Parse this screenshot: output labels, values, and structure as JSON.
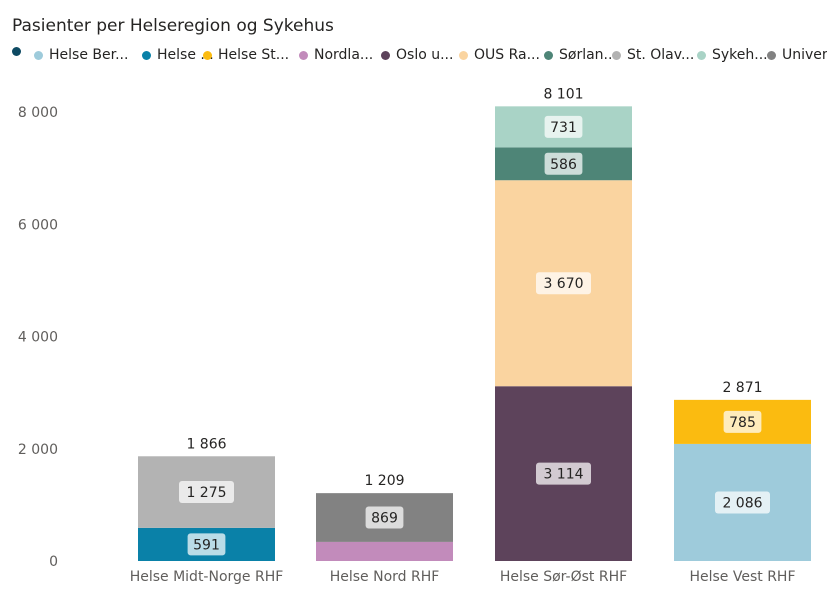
{
  "chart_data": {
    "type": "bar",
    "stacked": true,
    "title": "Pasienter per Helseregion og Sykehus",
    "legend_position": "top-left",
    "grid": false,
    "ylim": [
      0,
      8000
    ],
    "yticks": [
      0,
      2000,
      4000,
      6000,
      8000
    ],
    "ytick_labels": [
      "0",
      "2 000",
      "4 000",
      "6 000",
      "8 000"
    ],
    "categories": [
      "Helse Midt-Norge RHF",
      "Helse Nord RHF",
      "Helse Sør-Øst RHF",
      "Helse Vest RHF"
    ],
    "totals": [
      1866,
      1209,
      8101,
      2871
    ],
    "total_labels": [
      "1 866",
      "1 209",
      "8 101",
      "2 871"
    ],
    "legend": [
      {
        "label": "",
        "color": "#0e4a63"
      },
      {
        "label": "Helse Ber...",
        "color": "#9ecbdb"
      },
      {
        "label": "Helse ...",
        "color": "#0a81a8"
      },
      {
        "label": "Helse St...",
        "color": "#fbbb10"
      },
      {
        "label": "Nordla...",
        "color": "#c28bbb"
      },
      {
        "label": "Oslo u...",
        "color": "#5d435b"
      },
      {
        "label": "OUS Ra...",
        "color": "#fad4a0"
      },
      {
        "label": "Sørlan...",
        "color": "#4e8577"
      },
      {
        "label": "St. Olav...",
        "color": "#b3b3b3"
      },
      {
        "label": "Sykeh...",
        "color": "#a9d3c6"
      },
      {
        "label": "Univer...",
        "color": "#828282"
      }
    ],
    "series": [
      {
        "color": "#0a81a8",
        "values": [
          591,
          0,
          0,
          0
        ],
        "labels": [
          "591",
          "",
          "",
          ""
        ]
      },
      {
        "color": "#b3b3b3",
        "values": [
          1275,
          0,
          0,
          0
        ],
        "labels": [
          "1 275",
          "",
          "",
          ""
        ]
      },
      {
        "color": "#c28bbb",
        "values": [
          0,
          340,
          0,
          0
        ],
        "labels": [
          "",
          "",
          "",
          ""
        ]
      },
      {
        "color": "#828282",
        "values": [
          0,
          869,
          0,
          0
        ],
        "labels": [
          "",
          "869",
          "",
          ""
        ]
      },
      {
        "color": "#5d435b",
        "values": [
          0,
          0,
          3114,
          0
        ],
        "labels": [
          "",
          "",
          "3 114",
          ""
        ]
      },
      {
        "color": "#fad4a0",
        "values": [
          0,
          0,
          3670,
          0
        ],
        "labels": [
          "",
          "",
          "3 670",
          ""
        ]
      },
      {
        "color": "#4e8577",
        "values": [
          0,
          0,
          586,
          0
        ],
        "labels": [
          "",
          "",
          "586",
          ""
        ]
      },
      {
        "color": "#a9d3c6",
        "values": [
          0,
          0,
          731,
          0
        ],
        "labels": [
          "",
          "",
          "731",
          ""
        ]
      },
      {
        "color": "#9ecbdb",
        "values": [
          0,
          0,
          0,
          2086
        ],
        "labels": [
          "",
          "",
          "",
          "2 086"
        ]
      },
      {
        "color": "#fbbb10",
        "values": [
          0,
          0,
          0,
          785
        ],
        "labels": [
          "",
          "",
          "",
          "785"
        ]
      }
    ]
  }
}
